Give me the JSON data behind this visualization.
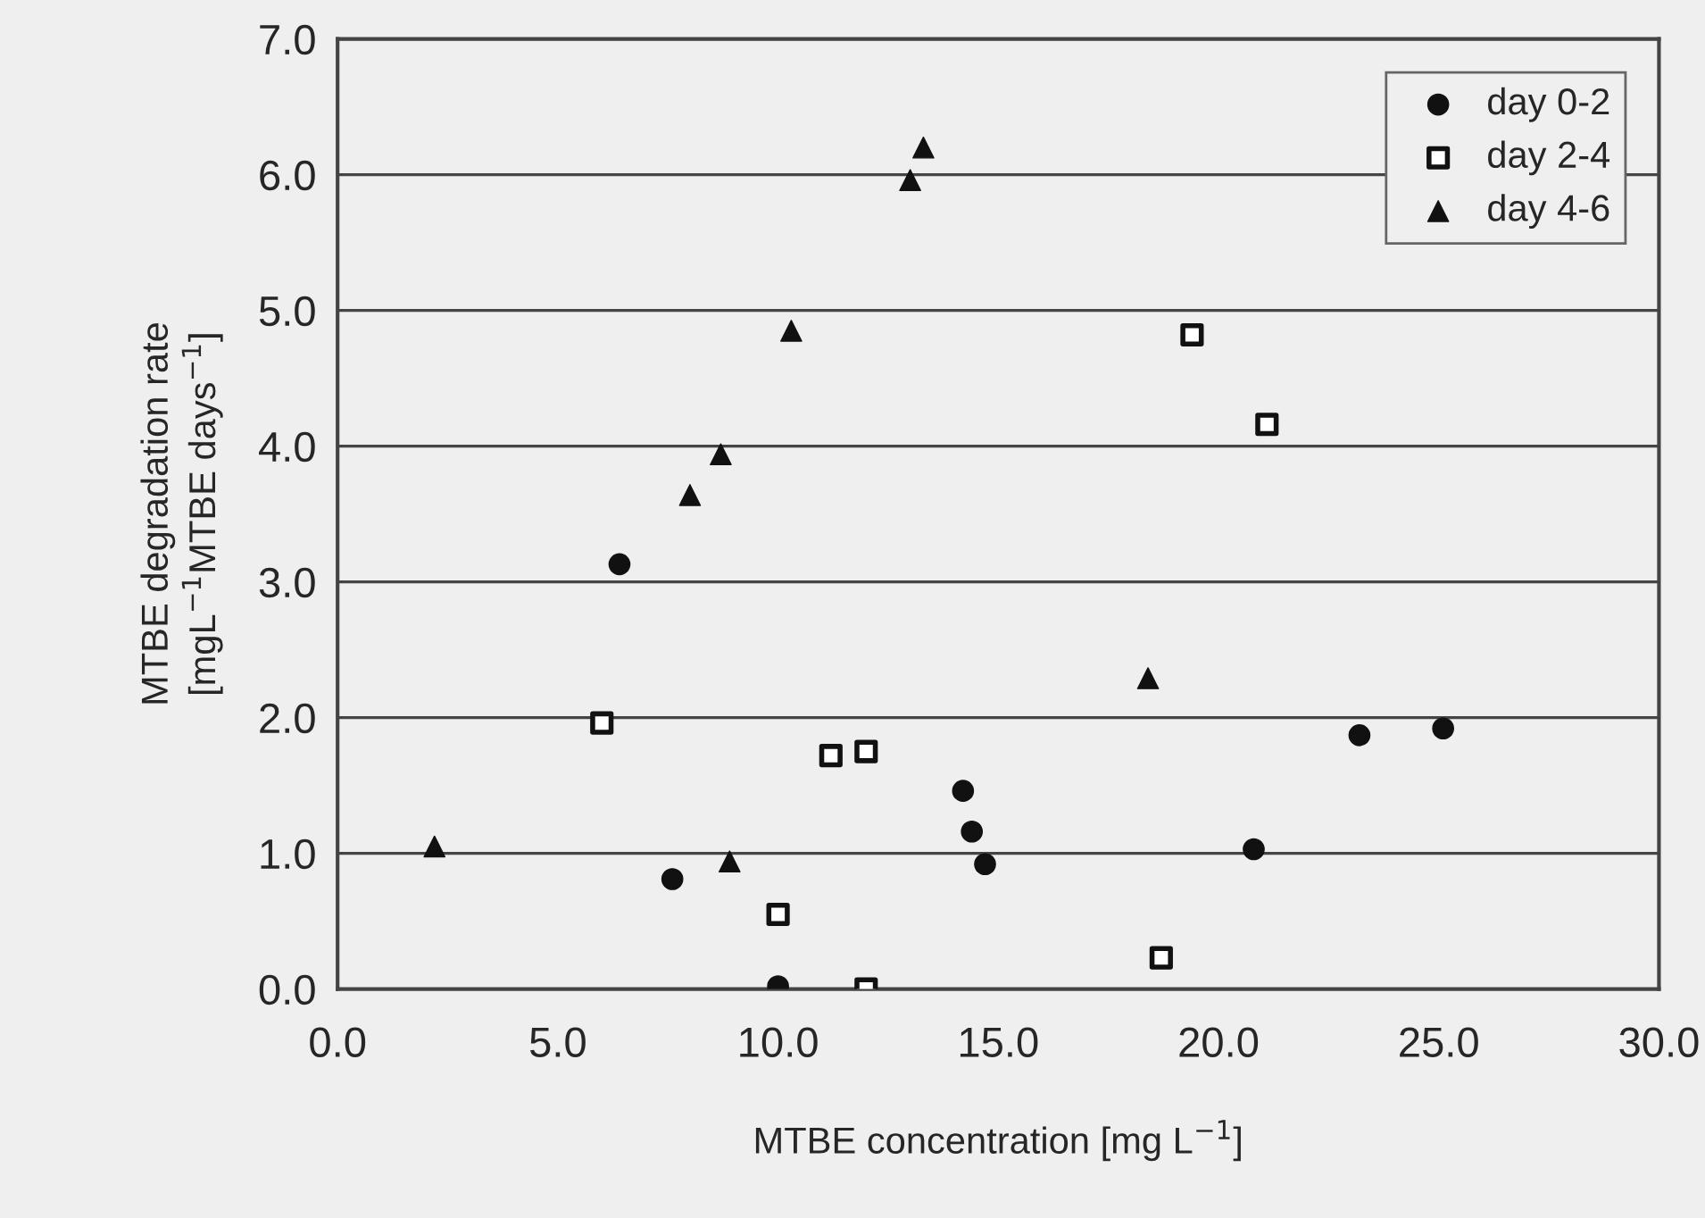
{
  "chart_data": {
    "type": "scatter",
    "xlabel": "MTBE concentration [mg L$^{−1}$]",
    "ylabel": "MTBE degradation rate\n[mgL$^{−1}$MTBE days$^{−1}$]",
    "xlim": [
      0,
      30
    ],
    "ylim": [
      0,
      7
    ],
    "xticks": [
      {
        "value": 0,
        "label": "0.0"
      },
      {
        "value": 5,
        "label": "5.0"
      },
      {
        "value": 10,
        "label": "10.0"
      },
      {
        "value": 15,
        "label": "15.0"
      },
      {
        "value": 20,
        "label": "20.0"
      },
      {
        "value": 25,
        "label": "25.0"
      },
      {
        "value": 30,
        "label": "30.0"
      }
    ],
    "yticks": [
      {
        "value": 0,
        "label": "0.0"
      },
      {
        "value": 1,
        "label": "1.0"
      },
      {
        "value": 2,
        "label": "2.0"
      },
      {
        "value": 3,
        "label": "3.0"
      },
      {
        "value": 4,
        "label": "4.0"
      },
      {
        "value": 5,
        "label": "5.0"
      },
      {
        "value": 6,
        "label": "6.0"
      },
      {
        "value": 7,
        "label": "7.0"
      }
    ],
    "grid": "y",
    "legend": "top right",
    "series": [
      {
        "name": "day 0-2",
        "color": "#111111",
        "marker": "circle",
        "x": [
          6.4,
          7.6,
          10.0,
          14.2,
          14.4,
          14.7,
          20.8,
          23.2,
          25.1
        ],
        "values": [
          3.13,
          0.81,
          0.02,
          1.46,
          1.16,
          0.92,
          1.03,
          1.87,
          1.92
        ]
      },
      {
        "name": "day 2-4",
        "color": "#111111",
        "marker": "square",
        "x": [
          6.0,
          11.2,
          12.0,
          10.0,
          12.0,
          18.7,
          19.4,
          21.1
        ],
        "values": [
          1.96,
          1.72,
          1.75,
          0.55,
          0.0,
          0.23,
          4.82,
          4.16
        ]
      },
      {
        "name": "day 4-6",
        "color": "#111111",
        "marker": "triangle",
        "x": [
          13.3,
          13.0,
          10.3,
          8.7,
          8.0,
          18.4,
          2.2,
          8.9
        ],
        "values": [
          6.2,
          5.96,
          4.85,
          3.94,
          3.64,
          2.29,
          1.05,
          0.94
        ]
      }
    ]
  }
}
